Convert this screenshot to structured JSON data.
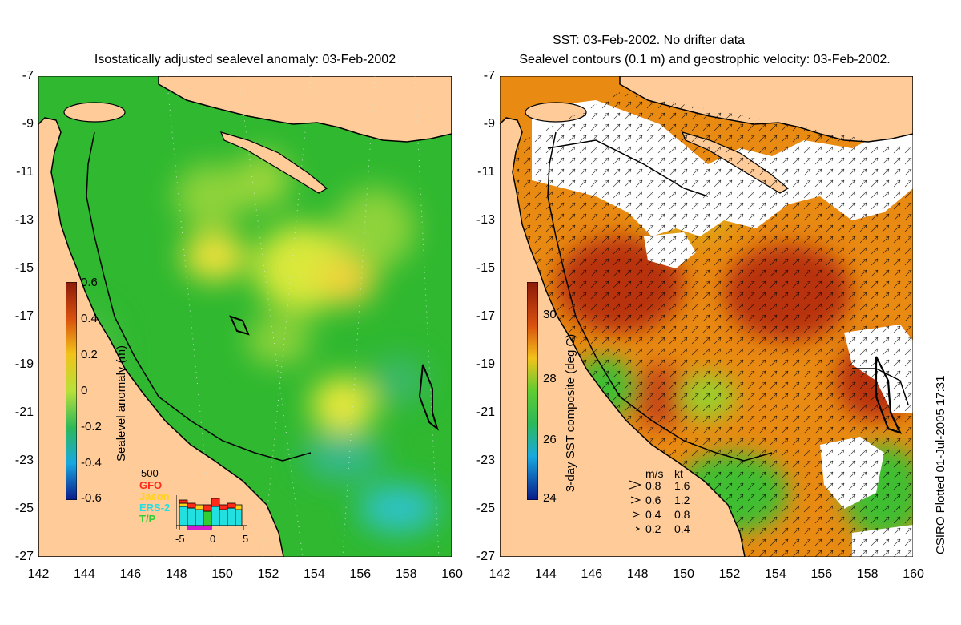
{
  "left_panel": {
    "title": "Isostatically adjusted sealevel anomaly: 03-Feb-2002",
    "colorbar": {
      "label": "Sealevel anomaly (m)",
      "ticks": [
        "0.6",
        "0.4",
        "0.2",
        "0",
        "-0.2",
        "-0.4",
        "-0.6"
      ]
    },
    "histogram": {
      "count_label": "500",
      "missions": [
        {
          "name": "GFO",
          "color": "#ff2a1a"
        },
        {
          "name": "Jason",
          "color": "#ffd21a"
        },
        {
          "name": "ERS-2",
          "color": "#23e0e0"
        },
        {
          "name": "T/P",
          "color": "#33cc33"
        }
      ],
      "ticks": [
        "-5",
        "0",
        "5"
      ]
    }
  },
  "right_panel": {
    "title_line1": "SST: 03-Feb-2002. No drifter data",
    "title_line2": "Sealevel contours (0.1 m) and geostrophic velocity: 03-Feb-2002.",
    "colorbar": {
      "label": "3-day SST composite (deg C)",
      "ticks": [
        "30",
        "28",
        "26",
        "24"
      ]
    },
    "velocity_legend": {
      "header_ms": "m/s",
      "header_kt": "kt",
      "rows": [
        {
          "ms": "0.8",
          "kt": "1.6"
        },
        {
          "ms": "0.6",
          "kt": "1.2"
        },
        {
          "ms": "0.4",
          "kt": "0.8"
        },
        {
          "ms": "0.2",
          "kt": "0.4"
        }
      ]
    }
  },
  "axes": {
    "y_ticks": [
      "-7",
      "-9",
      "-11",
      "-13",
      "-15",
      "-17",
      "-19",
      "-21",
      "-23",
      "-25",
      "-27"
    ],
    "x_ticks": [
      "142",
      "144",
      "146",
      "148",
      "150",
      "152",
      "154",
      "156",
      "158",
      "160"
    ]
  },
  "credit": "CSIRO Plotted 01-Jul-2005 17:31",
  "colors": {
    "land": "#ffcc99",
    "ocean_sla": "#2fb830",
    "sst_warm": "#c83a10",
    "sst_mid": "#e98a12",
    "cloud": "#ffffff"
  }
}
